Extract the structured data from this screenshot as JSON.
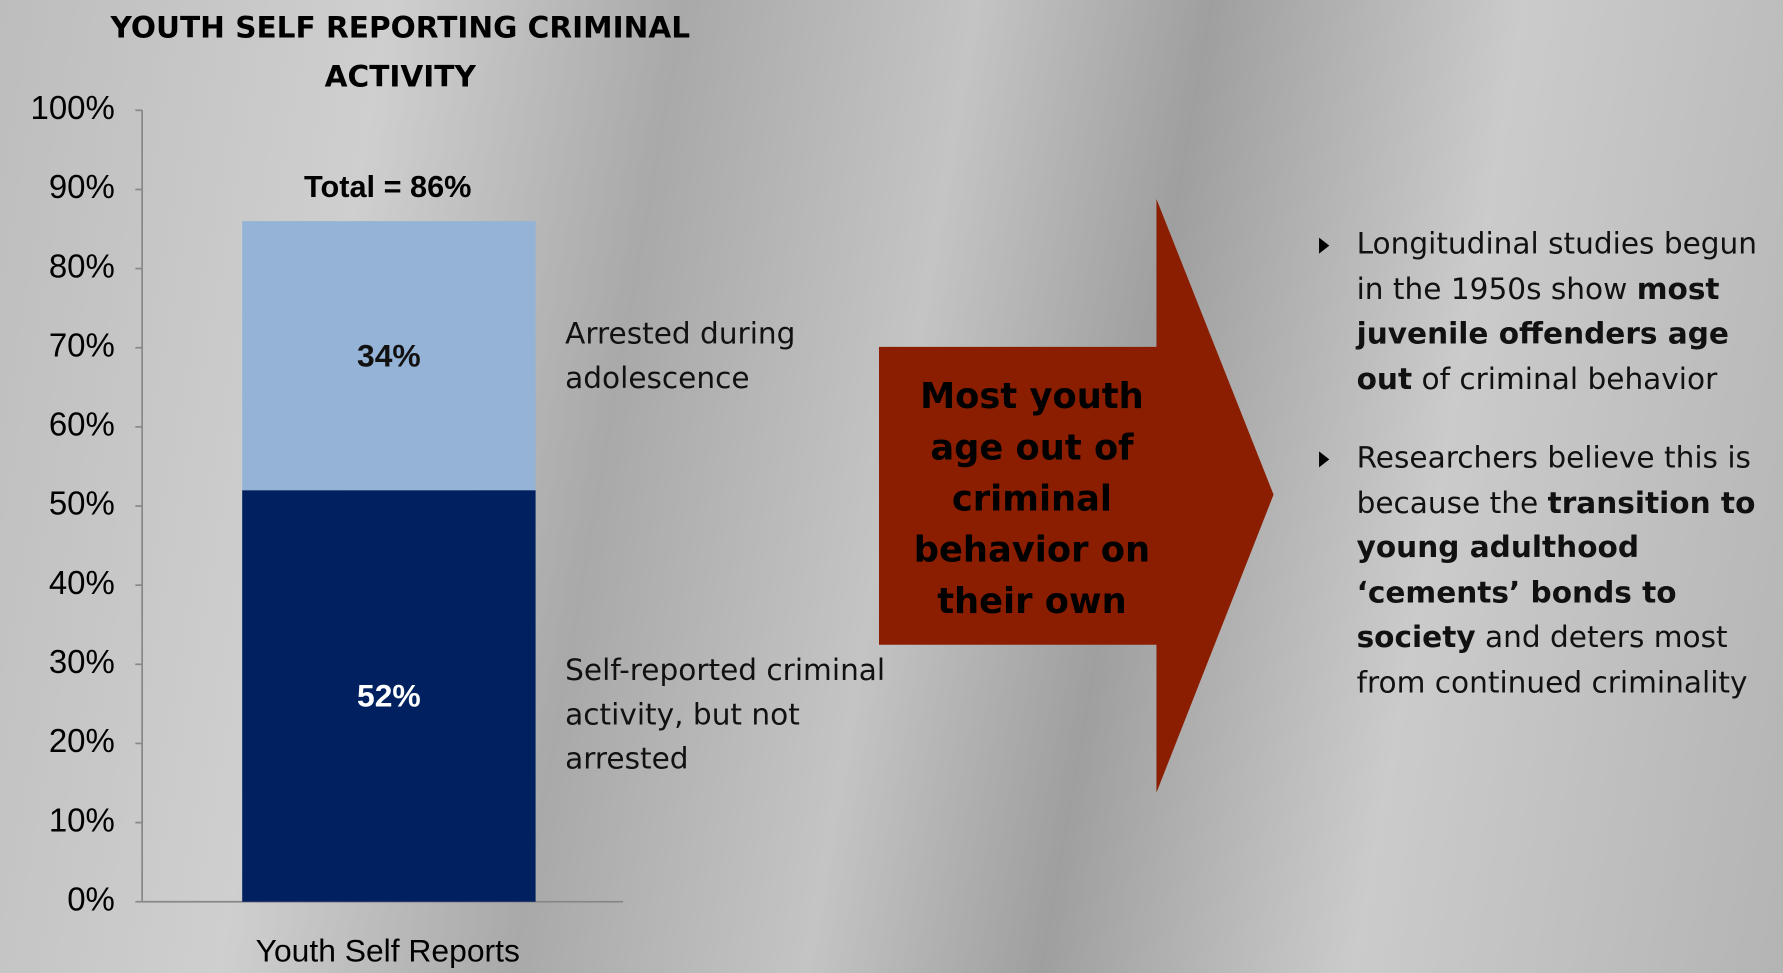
{
  "chart_data": {
    "type": "stacked_bar",
    "title": "YOUTH SELF REPORTING CRIMINAL ACTIVITY",
    "categories": [
      "Youth Self Reports"
    ],
    "series": [
      {
        "name": "Self-reported criminal activity, but not arrested",
        "color": "#002060",
        "label_color": "#ffffff",
        "values": [
          52
        ],
        "value_labels": [
          "52%"
        ]
      },
      {
        "name": "Arrested during adolescence",
        "color": "#95b3d7",
        "label_color": "#111111",
        "values": [
          34
        ],
        "value_labels": [
          "34%"
        ]
      }
    ],
    "total_label": "Total = 86%",
    "ylim": [
      0,
      100
    ],
    "yticks": [
      {
        "value": 0,
        "label": "0%"
      },
      {
        "value": 10,
        "label": "10%"
      },
      {
        "value": 20,
        "label": "20%"
      },
      {
        "value": 30,
        "label": "30%"
      },
      {
        "value": 40,
        "label": "40%"
      },
      {
        "value": 50,
        "label": "50%"
      },
      {
        "value": 60,
        "label": "60%"
      },
      {
        "value": 70,
        "label": "70%"
      },
      {
        "value": 80,
        "label": "80%"
      },
      {
        "value": 90,
        "label": "90%"
      },
      {
        "value": 100,
        "label": "100%"
      }
    ],
    "grid": false
  },
  "arrow_text": "Most youth age out of criminal behavior on their own",
  "bullets": [
    {
      "segments": [
        {
          "text": "Longitudinal studies begun in the 1950s show ",
          "bold": false
        },
        {
          "text": "most juvenile offenders age out",
          "bold": true
        },
        {
          "text": " of criminal behavior",
          "bold": false
        }
      ]
    },
    {
      "segments": [
        {
          "text": "Researchers believe this is because the ",
          "bold": false
        },
        {
          "text": "transition to young adulthood ‘cements’ bonds to society",
          "bold": true
        },
        {
          "text": " and deters most from continued criminality",
          "bold": false
        }
      ]
    }
  ]
}
